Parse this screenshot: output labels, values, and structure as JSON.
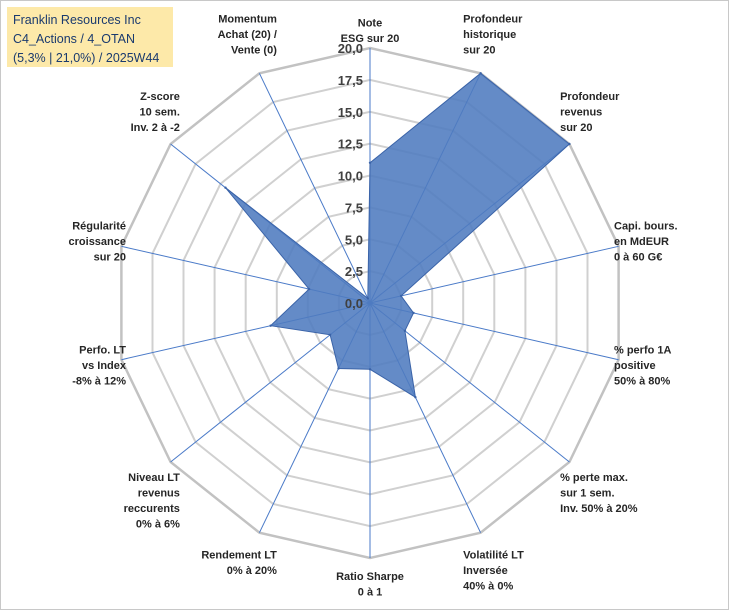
{
  "info": {
    "line1": "Franklin Resources Inc",
    "line2": "C4_Actions / 4_OTAN",
    "line3": "(5,3% | 21,0%) / 2025W44"
  },
  "colors": {
    "fill": "#4f7bbf",
    "fill_stroke": "#3a63a8",
    "grid": "#d0d0d0",
    "spoke": "#4a7ac8",
    "info_bg": "#fde9a9",
    "info_text": "#1a3a6e"
  },
  "chart_data": {
    "type": "radar",
    "title": "",
    "rmin": 0,
    "rmax": 20,
    "tick_step": 2.5,
    "tick_labels": [
      "0,0",
      "2,5",
      "5,0",
      "7,5",
      "10,0",
      "12,5",
      "15,0",
      "17,5",
      "20,0"
    ],
    "axes": [
      {
        "label": [
          "Note",
          "ESG sur 20"
        ],
        "value": 11.0
      },
      {
        "label": [
          "Profondeur",
          "historique",
          "sur 20"
        ],
        "value": 20.0
      },
      {
        "label": [
          "Profondeur",
          "revenus",
          "sur 20"
        ],
        "value": 20.0
      },
      {
        "label": [
          "Capi. bours.",
          "en MdEUR",
          "0 à 60 G€"
        ],
        "value": 2.5
      },
      {
        "label": [
          "% perfo 1A",
          "positive",
          "50% à 80%"
        ],
        "value": 3.5
      },
      {
        "label": [
          "% perte max.",
          "sur 1 sem.",
          "Inv. 50% à 20%"
        ],
        "value": 3.5
      },
      {
        "label": [
          "Volatilité LT",
          "Inversée",
          "40% à 0%"
        ],
        "value": 8.2
      },
      {
        "label": [
          "Ratio Sharpe",
          "0 à 1"
        ],
        "value": 5.2
      },
      {
        "label": [
          "Rendement LT",
          "0% à 20%"
        ],
        "value": 5.7
      },
      {
        "label": [
          "Niveau LT",
          "revenus",
          "reccurents",
          "0% à 6%"
        ],
        "value": 4.0
      },
      {
        "label": [
          "Perfo. LT",
          "vs Index",
          "-8% à 12%"
        ],
        "value": 8.0
      },
      {
        "label": [
          "Régularité",
          "croissance",
          "sur 20"
        ],
        "value": 4.9
      },
      {
        "label": [
          "Z-score",
          "10 sem.",
          "Inv. 2 à -2"
        ],
        "value": 14.5
      },
      {
        "label": [
          "Momentum",
          "Achat (20) /",
          "Vente (0)"
        ],
        "value": 0.4
      }
    ]
  }
}
